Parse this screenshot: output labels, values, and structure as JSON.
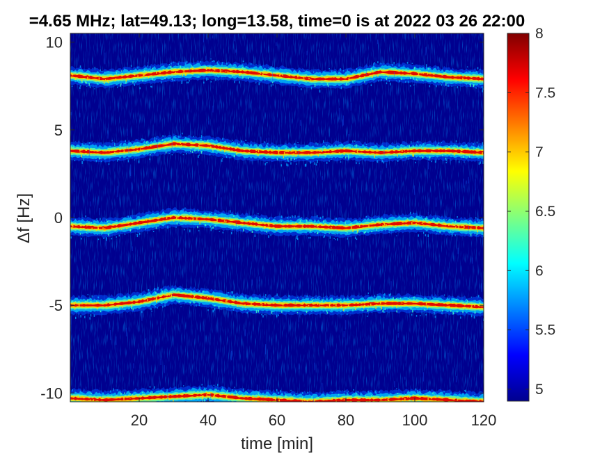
{
  "chart_data": {
    "type": "heatmap",
    "title": "=4.65 MHz;  lat=49.13; long=13.58, time=0 is at 2022 03 26 22:00",
    "xlabel": "time [min]",
    "ylabel": "Δf [Hz]",
    "xlim": [
      0,
      120
    ],
    "ylim": [
      -10.5,
      10.5
    ],
    "x_ticks": [
      "20",
      "40",
      "60",
      "80",
      "100",
      "120"
    ],
    "x_tick_values": [
      20,
      40,
      60,
      80,
      100,
      120
    ],
    "y_ticks": [
      "10",
      "5",
      "0",
      "-5",
      "-10"
    ],
    "y_tick_values": [
      10,
      5,
      0,
      -5,
      -10
    ],
    "colorbar": {
      "min": 4.9,
      "max": 8,
      "ticks": [
        "8",
        "7.5",
        "7",
        "6.5",
        "6",
        "5.5",
        "5"
      ],
      "tick_values": [
        8,
        7.5,
        7,
        6.5,
        6,
        5.5,
        5
      ],
      "colormap": "jet"
    },
    "background_level": 4.9,
    "series": [
      {
        "x": [
          0,
          10,
          20,
          30,
          40,
          50,
          60,
          70,
          80,
          90,
          100,
          110,
          120
        ],
        "values": [
          8.1,
          7.9,
          8.1,
          8.3,
          8.4,
          8.3,
          8.1,
          7.9,
          7.9,
          8.3,
          8.2,
          8.0,
          7.9
        ]
      },
      {
        "x": [
          0,
          10,
          20,
          30,
          40,
          50,
          60,
          70,
          80,
          90,
          100,
          110,
          120
        ],
        "values": [
          3.8,
          3.7,
          3.9,
          4.2,
          4.1,
          3.8,
          3.7,
          3.7,
          3.8,
          3.7,
          3.8,
          3.8,
          3.7
        ]
      },
      {
        "x": [
          0,
          10,
          20,
          30,
          40,
          50,
          60,
          70,
          80,
          90,
          100,
          110,
          120
        ],
        "values": [
          -0.5,
          -0.6,
          -0.3,
          0.0,
          -0.1,
          -0.3,
          -0.5,
          -0.5,
          -0.6,
          -0.4,
          -0.3,
          -0.5,
          -0.6
        ]
      },
      {
        "x": [
          0,
          10,
          20,
          30,
          40,
          50,
          60,
          70,
          80,
          90,
          100,
          110,
          120
        ],
        "values": [
          -5.0,
          -5.0,
          -4.8,
          -4.4,
          -4.6,
          -4.9,
          -5.0,
          -5.0,
          -5.0,
          -4.9,
          -4.9,
          -5.0,
          -5.1
        ]
      },
      {
        "x": [
          0,
          10,
          20,
          30,
          40,
          50,
          60,
          70,
          80,
          90,
          100,
          110,
          120
        ],
        "values": [
          -10.3,
          -10.4,
          -10.3,
          -10.2,
          -10.1,
          -10.3,
          -10.4,
          -10.5,
          -10.4,
          -10.4,
          -10.3,
          -10.4,
          -10.5
        ]
      }
    ]
  }
}
